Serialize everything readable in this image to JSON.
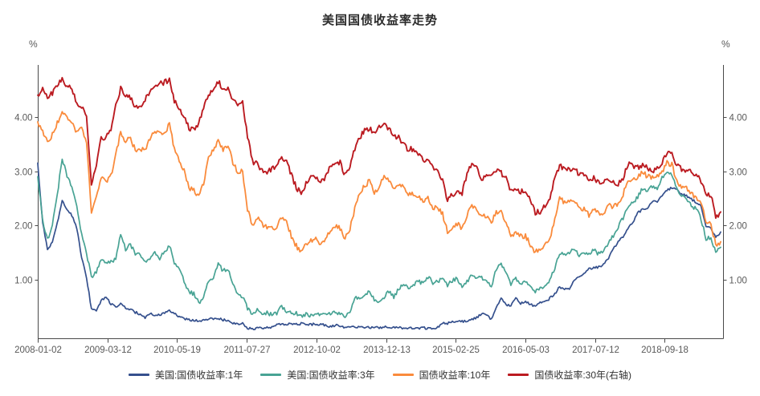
{
  "title": "美国国债收益率走势",
  "axes": {
    "left_unit": "%",
    "right_unit": "%",
    "y_ticks": [
      "1.00",
      "2.00",
      "3.00",
      "4.00"
    ],
    "x_ticks": [
      "2008-01-02",
      "2009-03-12",
      "2010-05-19",
      "2011-07-27",
      "2012-10-02",
      "2013-12-13",
      "2015-02-25",
      "2016-05-03",
      "2017-07-12",
      "2018-09-18"
    ]
  },
  "legend": [
    {
      "label": "美国:国债收益率:1年",
      "color": "#35508d"
    },
    {
      "label": "美国:国债收益率:3年",
      "color": "#48a394"
    },
    {
      "label": "国债收益率:10年",
      "color": "#fa8b3c"
    },
    {
      "label": "国债收益率:30年(右轴)",
      "color": "#bb1b21"
    }
  ],
  "chart_data": {
    "type": "line",
    "title": "美国国债收益率走势",
    "xlabel": "",
    "ylabel": "%",
    "x_start": "2008-01",
    "x_end": "2019-09",
    "x_interval": "monthly",
    "n_points": 141,
    "ylim_left": [
      0,
      5
    ],
    "ylim_right": [
      0,
      5
    ],
    "y_tick_values": [
      1,
      2,
      3,
      4
    ],
    "grid": false,
    "legend_position": "bottom",
    "series": [
      {
        "name": "美国:国债收益率:1年",
        "axis": "left",
        "color": "#35508d",
        "values": [
          3.15,
          2.05,
          1.55,
          1.7,
          2.05,
          2.45,
          2.3,
          2.18,
          1.95,
          1.4,
          1.05,
          0.45,
          0.42,
          0.62,
          0.68,
          0.55,
          0.5,
          0.55,
          0.48,
          0.46,
          0.4,
          0.37,
          0.31,
          0.37,
          0.35,
          0.35,
          0.4,
          0.45,
          0.37,
          0.32,
          0.29,
          0.26,
          0.26,
          0.23,
          0.25,
          0.29,
          0.27,
          0.29,
          0.26,
          0.25,
          0.19,
          0.18,
          0.19,
          0.11,
          0.1,
          0.11,
          0.11,
          0.12,
          0.12,
          0.16,
          0.19,
          0.18,
          0.19,
          0.19,
          0.19,
          0.18,
          0.18,
          0.18,
          0.18,
          0.16,
          0.14,
          0.16,
          0.15,
          0.12,
          0.12,
          0.14,
          0.12,
          0.13,
          0.12,
          0.12,
          0.12,
          0.13,
          0.12,
          0.12,
          0.13,
          0.11,
          0.1,
          0.11,
          0.11,
          0.11,
          0.11,
          0.1,
          0.13,
          0.21,
          0.2,
          0.22,
          0.25,
          0.23,
          0.24,
          0.28,
          0.3,
          0.38,
          0.37,
          0.26,
          0.48,
          0.65,
          0.54,
          0.53,
          0.66,
          0.56,
          0.59,
          0.55,
          0.51,
          0.57,
          0.59,
          0.66,
          0.74,
          0.87,
          0.83,
          0.82,
          1.01,
          1.04,
          1.12,
          1.2,
          1.22,
          1.23,
          1.28,
          1.4,
          1.56,
          1.7,
          1.8,
          1.96,
          2.06,
          2.23,
          2.3,
          2.33,
          2.43,
          2.45,
          2.56,
          2.65,
          2.7,
          2.66,
          2.58,
          2.55,
          2.49,
          2.42,
          2.35,
          2.0,
          1.96,
          1.77,
          1.88
        ]
      },
      {
        "name": "美国:国债收益率:3年",
        "axis": "left",
        "color": "#48a394",
        "values": [
          2.9,
          2.1,
          1.75,
          2.0,
          2.55,
          3.25,
          2.9,
          2.72,
          2.35,
          1.85,
          1.5,
          1.05,
          1.15,
          1.4,
          1.32,
          1.32,
          1.4,
          1.85,
          1.55,
          1.65,
          1.48,
          1.46,
          1.32,
          1.38,
          1.49,
          1.4,
          1.51,
          1.64,
          1.32,
          1.17,
          0.98,
          0.78,
          0.74,
          0.57,
          0.67,
          0.99,
          1.03,
          1.28,
          1.17,
          1.21,
          0.94,
          0.71,
          0.69,
          0.47,
          0.35,
          0.47,
          0.39,
          0.39,
          0.36,
          0.38,
          0.51,
          0.43,
          0.39,
          0.39,
          0.33,
          0.37,
          0.34,
          0.37,
          0.36,
          0.35,
          0.39,
          0.4,
          0.39,
          0.34,
          0.4,
          0.66,
          0.64,
          0.7,
          0.78,
          0.63,
          0.58,
          0.69,
          0.78,
          0.69,
          0.82,
          0.91,
          0.83,
          0.9,
          0.97,
          0.93,
          1.05,
          0.95,
          0.96,
          1.06,
          0.9,
          0.99,
          1.02,
          0.87,
          0.98,
          1.07,
          1.03,
          1.03,
          1.01,
          0.86,
          1.2,
          1.28,
          1.14,
          0.9,
          1.04,
          0.92,
          0.97,
          0.86,
          0.79,
          0.85,
          0.9,
          0.99,
          1.22,
          1.49,
          1.48,
          1.47,
          1.59,
          1.44,
          1.48,
          1.49,
          1.54,
          1.48,
          1.51,
          1.68,
          1.81,
          1.97,
          2.14,
          2.36,
          2.42,
          2.52,
          2.69,
          2.65,
          2.72,
          2.7,
          2.88,
          2.97,
          2.92,
          2.68,
          2.54,
          2.5,
          2.36,
          2.31,
          2.12,
          1.75,
          1.79,
          1.49,
          1.6
        ]
      },
      {
        "name": "国债收益率:10年",
        "axis": "left",
        "color": "#fa8b3c",
        "values": [
          3.91,
          3.74,
          3.51,
          3.68,
          3.88,
          4.1,
          4.01,
          3.89,
          3.69,
          3.81,
          3.53,
          2.25,
          2.52,
          2.87,
          2.82,
          2.93,
          3.29,
          3.72,
          3.56,
          3.59,
          3.4,
          3.39,
          3.4,
          3.59,
          3.73,
          3.69,
          3.73,
          3.85,
          3.42,
          3.2,
          3.01,
          2.7,
          2.65,
          2.54,
          2.76,
          3.29,
          3.39,
          3.58,
          3.41,
          3.46,
          3.17,
          3.0,
          3.0,
          2.3,
          1.98,
          2.15,
          2.01,
          1.98,
          1.97,
          1.97,
          2.17,
          2.05,
          1.8,
          1.62,
          1.53,
          1.68,
          1.72,
          1.75,
          1.65,
          1.72,
          1.91,
          1.98,
          1.96,
          1.76,
          1.93,
          2.3,
          2.58,
          2.74,
          2.81,
          2.62,
          2.72,
          2.9,
          2.86,
          2.71,
          2.72,
          2.71,
          2.56,
          2.6,
          2.54,
          2.42,
          2.53,
          2.3,
          2.33,
          2.21,
          1.88,
          1.98,
          2.04,
          1.94,
          2.2,
          2.36,
          2.32,
          2.17,
          2.17,
          2.07,
          2.26,
          2.24,
          2.09,
          1.78,
          1.89,
          1.81,
          1.81,
          1.64,
          1.5,
          1.56,
          1.63,
          1.76,
          2.14,
          2.49,
          2.43,
          2.42,
          2.48,
          2.3,
          2.3,
          2.19,
          2.32,
          2.21,
          2.2,
          2.36,
          2.35,
          2.4,
          2.58,
          2.86,
          2.84,
          2.87,
          2.98,
          2.91,
          2.89,
          2.89,
          3.0,
          3.15,
          3.12,
          2.83,
          2.71,
          2.68,
          2.57,
          2.53,
          2.4,
          2.07,
          2.06,
          1.63,
          1.7
        ]
      },
      {
        "name": "国债收益率:30年(右轴)",
        "axis": "right",
        "color": "#bb1b21",
        "values": [
          4.4,
          4.52,
          4.39,
          4.44,
          4.6,
          4.69,
          4.57,
          4.5,
          4.27,
          4.17,
          4.0,
          2.7,
          3.13,
          3.59,
          3.64,
          3.76,
          4.23,
          4.52,
          4.41,
          4.37,
          4.19,
          4.19,
          4.31,
          4.49,
          4.6,
          4.62,
          4.64,
          4.69,
          4.29,
          4.13,
          3.99,
          3.8,
          3.77,
          3.87,
          4.19,
          4.42,
          4.52,
          4.65,
          4.51,
          4.5,
          4.29,
          4.23,
          4.27,
          3.65,
          3.18,
          3.13,
          3.02,
          2.98,
          3.03,
          3.11,
          3.28,
          3.18,
          2.93,
          2.7,
          2.59,
          2.77,
          2.88,
          2.9,
          2.8,
          2.88,
          3.08,
          3.17,
          3.16,
          2.93,
          3.11,
          3.4,
          3.61,
          3.76,
          3.79,
          3.68,
          3.8,
          3.89,
          3.77,
          3.66,
          3.62,
          3.52,
          3.39,
          3.42,
          3.33,
          3.2,
          3.26,
          3.04,
          3.04,
          2.83,
          2.46,
          2.57,
          2.63,
          2.59,
          2.96,
          3.11,
          3.07,
          2.86,
          2.95,
          2.89,
          3.03,
          2.97,
          2.86,
          2.62,
          2.68,
          2.62,
          2.63,
          2.45,
          2.23,
          2.26,
          2.35,
          2.5,
          2.86,
          3.11,
          3.02,
          3.03,
          3.08,
          2.94,
          2.96,
          2.8,
          2.88,
          2.8,
          2.78,
          2.88,
          2.8,
          2.77,
          2.88,
          3.13,
          3.09,
          3.07,
          3.13,
          3.05,
          3.01,
          3.04,
          3.15,
          3.34,
          3.36,
          3.1,
          3.04,
          3.02,
          2.98,
          2.94,
          2.82,
          2.57,
          2.57,
          2.12,
          2.25
        ]
      }
    ]
  }
}
